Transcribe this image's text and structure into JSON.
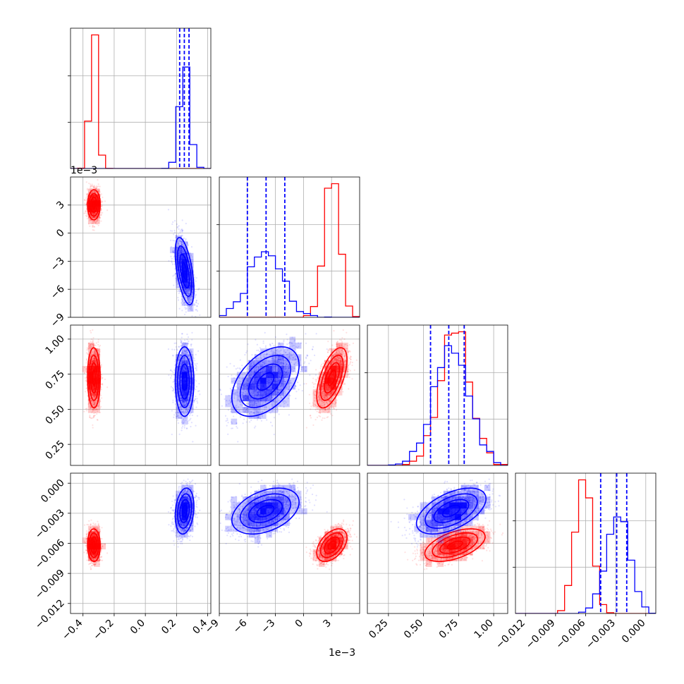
{
  "figure": {
    "offset_y_label": "1e−3",
    "offset_x_label": "1e−3"
  },
  "chart_data": {
    "type": "corner",
    "parameters": [
      {
        "id": "p0",
        "range": [
          -0.48,
          0.42
        ],
        "ticks": [
          -0.4,
          -0.2,
          0.0,
          0.2,
          0.4
        ],
        "tick_labels": [
          "−0.4",
          "−0.2",
          "0.0",
          "0.2",
          "0.4"
        ]
      },
      {
        "id": "p1",
        "range": [
          -9,
          6
        ],
        "ticks": [
          -9,
          -6,
          -3,
          0,
          3
        ],
        "tick_labels": [
          "−9",
          "−6",
          "−3",
          "0",
          "3"
        ],
        "offset": "1e−3"
      },
      {
        "id": "p2",
        "range": [
          0.1,
          1.1
        ],
        "ticks": [
          0.25,
          0.5,
          0.75,
          1.0
        ],
        "tick_labels": [
          "0.25",
          "0.50",
          "0.75",
          "1.00"
        ]
      },
      {
        "id": "p3",
        "range": [
          -0.013,
          0.001
        ],
        "ticks": [
          -0.012,
          -0.009,
          -0.006,
          -0.003,
          0.0
        ],
        "tick_labels": [
          "−0.012",
          "−0.009",
          "−0.006",
          "−0.003",
          "0.000"
        ]
      }
    ],
    "series": [
      {
        "color": "#0000ff",
        "means": [
          0.25,
          -4.0,
          0.7,
          -0.0028
        ],
        "sds": [
          0.03,
          1.8,
          0.12,
          0.0011
        ],
        "quantiles": [
          [
            0.22,
            0.25,
            0.28
          ],
          [
            -6.0,
            -4.0,
            -2.0
          ],
          [
            0.55,
            0.68,
            0.79
          ],
          [
            -0.0045,
            -0.0029,
            -0.0019
          ]
        ]
      },
      {
        "color": "#ff0000",
        "means": [
          -0.33,
          3.0,
          0.72,
          -0.0062
        ],
        "sds": [
          0.02,
          0.8,
          0.11,
          0.0008
        ],
        "quantiles": null
      }
    ],
    "correlations": {
      "1-0": [
        -0.55,
        0.05
      ],
      "2-0": [
        0.0,
        0.0
      ],
      "2-1": [
        0.55,
        0.6
      ],
      "3-0": [
        0.25,
        0.0
      ],
      "3-1": [
        0.6,
        0.5
      ],
      "3-2": [
        0.25,
        0.3
      ]
    },
    "grid": true,
    "diagonal": "step-histogram",
    "off_diagonal": "scatter + filled density contours",
    "quantile_lines": "dashed, blue series only"
  }
}
